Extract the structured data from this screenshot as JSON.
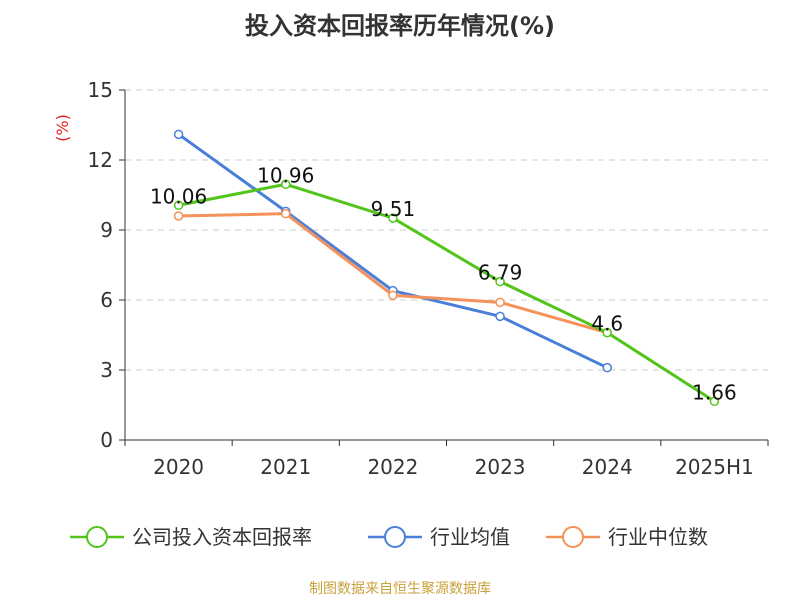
{
  "chart_data": {
    "type": "line",
    "title": "投入资本回报率历年情况(%)",
    "ylabel": "(%)",
    "xlabel": "",
    "categories": [
      "2020",
      "2021",
      "2022",
      "2023",
      "2024",
      "2025H1"
    ],
    "ylim": [
      0,
      15
    ],
    "yticks": [
      0,
      3,
      6,
      9,
      12,
      15
    ],
    "grid": true,
    "legend_position": "bottom",
    "series": [
      {
        "name": "公司投入资本回报率",
        "color": "#52c41a",
        "values": [
          10.06,
          10.96,
          9.51,
          6.79,
          4.6,
          1.66
        ],
        "labels": [
          "10.06",
          "10.96",
          "9.51",
          "6.79",
          "4.6",
          "1.66"
        ]
      },
      {
        "name": "行业均值",
        "color": "#4a7fd9",
        "values": [
          13.1,
          9.8,
          6.4,
          5.3,
          3.1,
          null
        ]
      },
      {
        "name": "行业中位数",
        "color": "#f5915a",
        "values": [
          9.6,
          9.7,
          6.2,
          5.9,
          4.6,
          null
        ]
      }
    ],
    "ylabel_color": "#e02020"
  },
  "source_text": "制图数据来自恒生聚源数据库"
}
